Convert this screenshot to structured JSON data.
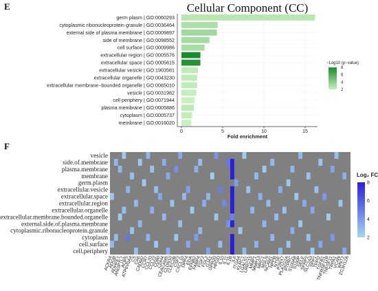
{
  "chart_data": [
    {
      "type": "bar",
      "panel": "E",
      "title": "Cellular Component (CC)",
      "xlabel": "Fold enrichment",
      "xticks": [
        0,
        5,
        10,
        15
      ],
      "xlim": [
        -0.5,
        16.5
      ],
      "legend": {
        "title": "−Log10 (p−value)",
        "ticks": [
          2,
          4,
          6,
          8
        ],
        "low_color": "#c8f0c0",
        "high_color": "#1e8a2e",
        "placement": "right"
      },
      "categories": [
        "germ plasm | GO:0060293",
        "cytoplasmic ribonucleoprotein granule | GO:0036464",
        "external side of plasma membrane | GO:0009897",
        "side of membrane | GO:0098552",
        "cell surface | GO:0009986",
        "extracellular region | GO:0005576",
        "extracellular space | GO:0005615",
        "extracellular vesicle | GO:1903561",
        "extracellular organelle | GO:0043230",
        "extracellular membrane−bounded organelle | GO:0065010",
        "vesicle | GO:0031982",
        "cell periphery | GO:0071944",
        "plasma membrane | GO:0005886",
        "cytoplasm | GO:0005737",
        "membrane | GO:0016020"
      ],
      "values": [
        16.2,
        4.4,
        4.3,
        3.4,
        2.8,
        2.3,
        2.3,
        2.0,
        1.9,
        1.9,
        1.8,
        1.6,
        1.5,
        1.3,
        1.2
      ],
      "color_values": [
        2.6,
        3.0,
        3.4,
        3.2,
        3.1,
        8.2,
        7.6,
        2.3,
        2.3,
        2.3,
        2.1,
        2.0,
        2.4,
        2.2,
        2.0
      ]
    },
    {
      "type": "heatmap",
      "panel": "F",
      "rows": [
        "vesicle",
        "side.of.membrane",
        "plasma.membrane",
        "membrane",
        "germ.plasm",
        "extracellular.vesicle",
        "extracellular.space",
        "extracellular.region",
        "extracellular.organelle",
        "extracellular.membrane.bounded.organelle",
        "external.side.of.plasma.membrane",
        "cytoplasmic.ribonucleoprotein.granule",
        "cytoplasm",
        "cell.surface",
        "cell.periphery"
      ],
      "columns": [
        "ACKR4",
        "ADGB",
        "ADHFE1",
        "ANGPTL1",
        "AQP5",
        "ATP6V0A4",
        "C5",
        "CA6",
        "CADM2",
        "CCR7",
        "CCL20",
        "CCL22",
        "CD80",
        "CDH4",
        "CEACAM5",
        "CLDN10",
        "CLEC2B",
        "CSF2",
        "CXCL10",
        "DPP4",
        "EDA",
        "EFNB2",
        "FABP4",
        "FGF2",
        "FGL2",
        "GJA1",
        "GPR20",
        "HPGD",
        "IL10",
        "IL11",
        "IL1B",
        "IL6",
        "ITGA4",
        "KLRC1",
        "LGALS1",
        "LRRC15",
        "MMP1",
        "MMP13",
        "MRC1",
        "MSLN",
        "NCAM1",
        "NPPB",
        "NT5E",
        "P2RX7",
        "PLA2G2A",
        "PTPRC",
        "S100A8",
        "S100P",
        "SELE",
        "SFRP2",
        "SLC2A3",
        "SPP1",
        "TFPI2",
        "TGFB1",
        "TNFRSF11B",
        "TNFSF11",
        "TRPA1",
        "VCAN",
        "WNT2",
        "ZC3H12A"
      ],
      "cells": [
        {
          "r": 0,
          "c": 3,
          "v": 2.5
        },
        {
          "r": 0,
          "c": 9,
          "v": 3.2
        },
        {
          "r": 0,
          "c": 17,
          "v": 3.6
        },
        {
          "r": 0,
          "c": 26,
          "v": 4.2
        },
        {
          "r": 0,
          "c": 33,
          "v": 2.4
        },
        {
          "r": 0,
          "c": 47,
          "v": 3.0
        },
        {
          "r": 0,
          "c": 56,
          "v": 2.8
        },
        {
          "r": 1,
          "c": 1,
          "v": 3.1
        },
        {
          "r": 1,
          "c": 7,
          "v": 2.6
        },
        {
          "r": 1,
          "c": 13,
          "v": 3.4
        },
        {
          "r": 1,
          "c": 22,
          "v": 2.9
        },
        {
          "r": 1,
          "c": 29,
          "v": 5.1
        },
        {
          "r": 1,
          "c": 30,
          "v": 9.6
        },
        {
          "r": 1,
          "c": 40,
          "v": 3.0
        },
        {
          "r": 1,
          "c": 52,
          "v": 2.6
        },
        {
          "r": 2,
          "c": 2,
          "v": 3.0
        },
        {
          "r": 2,
          "c": 10,
          "v": 2.7
        },
        {
          "r": 2,
          "c": 16,
          "v": 4.4
        },
        {
          "r": 2,
          "c": 21,
          "v": 3.3
        },
        {
          "r": 2,
          "c": 30,
          "v": 9.8
        },
        {
          "r": 2,
          "c": 38,
          "v": 2.5
        },
        {
          "r": 2,
          "c": 45,
          "v": 3.1
        },
        {
          "r": 2,
          "c": 55,
          "v": 3.7
        },
        {
          "r": 3,
          "c": 5,
          "v": 2.8
        },
        {
          "r": 3,
          "c": 14,
          "v": 3.5
        },
        {
          "r": 3,
          "c": 25,
          "v": 2.4
        },
        {
          "r": 3,
          "c": 30,
          "v": 9.4
        },
        {
          "r": 3,
          "c": 36,
          "v": 3.0
        },
        {
          "r": 3,
          "c": 49,
          "v": 2.7
        },
        {
          "r": 3,
          "c": 58,
          "v": 3.3
        },
        {
          "r": 4,
          "c": 8,
          "v": 2.5
        },
        {
          "r": 4,
          "c": 31,
          "v": 3.9
        },
        {
          "r": 4,
          "c": 44,
          "v": 2.6
        },
        {
          "r": 5,
          "c": 4,
          "v": 3.2
        },
        {
          "r": 5,
          "c": 11,
          "v": 2.9
        },
        {
          "r": 5,
          "c": 19,
          "v": 3.8
        },
        {
          "r": 5,
          "c": 27,
          "v": 4.9
        },
        {
          "r": 5,
          "c": 30,
          "v": 9.5
        },
        {
          "r": 5,
          "c": 34,
          "v": 2.7
        },
        {
          "r": 5,
          "c": 42,
          "v": 3.4
        },
        {
          "r": 5,
          "c": 51,
          "v": 2.8
        },
        {
          "r": 6,
          "c": 0,
          "v": 2.6
        },
        {
          "r": 6,
          "c": 12,
          "v": 3.6
        },
        {
          "r": 6,
          "c": 18,
          "v": 2.9
        },
        {
          "r": 6,
          "c": 24,
          "v": 3.1
        },
        {
          "r": 6,
          "c": 30,
          "v": 9.9
        },
        {
          "r": 6,
          "c": 37,
          "v": 3.3
        },
        {
          "r": 6,
          "c": 46,
          "v": 2.5
        },
        {
          "r": 6,
          "c": 53,
          "v": 4.0
        },
        {
          "r": 7,
          "c": 6,
          "v": 3.0
        },
        {
          "r": 7,
          "c": 15,
          "v": 2.7
        },
        {
          "r": 7,
          "c": 23,
          "v": 3.4
        },
        {
          "r": 7,
          "c": 28,
          "v": 4.6
        },
        {
          "r": 7,
          "c": 30,
          "v": 9.7
        },
        {
          "r": 7,
          "c": 39,
          "v": 2.9
        },
        {
          "r": 7,
          "c": 48,
          "v": 3.5
        },
        {
          "r": 7,
          "c": 57,
          "v": 2.6
        },
        {
          "r": 8,
          "c": 3,
          "v": 2.8
        },
        {
          "r": 8,
          "c": 10,
          "v": 3.3
        },
        {
          "r": 8,
          "c": 20,
          "v": 2.5
        },
        {
          "r": 8,
          "c": 30,
          "v": 9.3
        },
        {
          "r": 8,
          "c": 35,
          "v": 3.1
        },
        {
          "r": 8,
          "c": 43,
          "v": 2.7
        },
        {
          "r": 8,
          "c": 50,
          "v": 3.6
        },
        {
          "r": 9,
          "c": 2,
          "v": 2.5
        },
        {
          "r": 9,
          "c": 13,
          "v": 3.0
        },
        {
          "r": 9,
          "c": 26,
          "v": 2.6
        },
        {
          "r": 9,
          "c": 30,
          "v": 4.8
        },
        {
          "r": 9,
          "c": 41,
          "v": 2.9
        },
        {
          "r": 9,
          "c": 54,
          "v": 2.4
        },
        {
          "r": 10,
          "c": 7,
          "v": 3.1
        },
        {
          "r": 10,
          "c": 17,
          "v": 2.8
        },
        {
          "r": 10,
          "c": 29,
          "v": 4.3
        },
        {
          "r": 10,
          "c": 30,
          "v": 9.8
        },
        {
          "r": 10,
          "c": 38,
          "v": 3.2
        },
        {
          "r": 10,
          "c": 47,
          "v": 2.6
        },
        {
          "r": 11,
          "c": 5,
          "v": 2.7
        },
        {
          "r": 11,
          "c": 22,
          "v": 3.0
        },
        {
          "r": 11,
          "c": 32,
          "v": 2.5
        },
        {
          "r": 11,
          "c": 45,
          "v": 3.4
        },
        {
          "r": 12,
          "c": 1,
          "v": 2.9
        },
        {
          "r": 12,
          "c": 4,
          "v": 5.2
        },
        {
          "r": 12,
          "c": 9,
          "v": 3.3
        },
        {
          "r": 12,
          "c": 16,
          "v": 2.6
        },
        {
          "r": 12,
          "c": 21,
          "v": 3.9
        },
        {
          "r": 12,
          "c": 30,
          "v": 9.6
        },
        {
          "r": 12,
          "c": 40,
          "v": 3.1
        },
        {
          "r": 12,
          "c": 49,
          "v": 2.8
        },
        {
          "r": 12,
          "c": 55,
          "v": 4.1
        },
        {
          "r": 13,
          "c": 0,
          "v": 3.0
        },
        {
          "r": 13,
          "c": 11,
          "v": 2.6
        },
        {
          "r": 13,
          "c": 19,
          "v": 3.5
        },
        {
          "r": 13,
          "c": 27,
          "v": 2.9
        },
        {
          "r": 13,
          "c": 30,
          "v": 9.5
        },
        {
          "r": 13,
          "c": 36,
          "v": 3.2
        },
        {
          "r": 13,
          "c": 44,
          "v": 2.7
        },
        {
          "r": 13,
          "c": 52,
          "v": 3.6
        },
        {
          "r": 14,
          "c": 6,
          "v": 2.8
        },
        {
          "r": 14,
          "c": 14,
          "v": 3.4
        },
        {
          "r": 14,
          "c": 24,
          "v": 3.7
        },
        {
          "r": 14,
          "c": 30,
          "v": 9.9
        },
        {
          "r": 14,
          "c": 33,
          "v": 2.9
        },
        {
          "r": 14,
          "c": 42,
          "v": 3.1
        },
        {
          "r": 14,
          "c": 50,
          "v": 2.6
        },
        {
          "r": 14,
          "c": 58,
          "v": 3.5
        }
      ],
      "background_color": "#808080",
      "legend": {
        "title": "Log₂ FC",
        "ticks": [
          2,
          4,
          6,
          8
        ],
        "low_color": "#a8d8f0",
        "high_color": "#2a1fd6",
        "placement": "right"
      }
    }
  ],
  "panels": {
    "e_letter": "E",
    "f_letter": "F"
  }
}
